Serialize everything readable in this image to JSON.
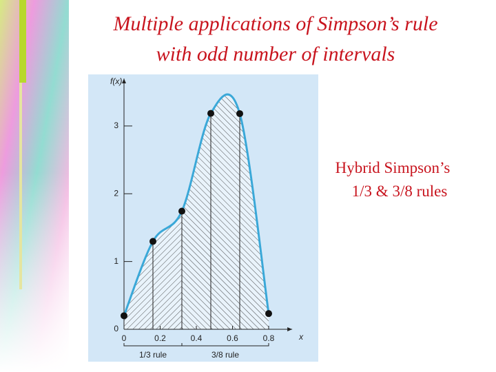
{
  "title": [
    "Multiple applications of Simpson’s rule",
    "with odd number of intervals"
  ],
  "side_text": [
    "Hybrid Simpson’s",
    "1/3 & 3/8 rules"
  ],
  "chart_data": {
    "type": "line",
    "ylabel": "f(x)",
    "xlabel": "x",
    "x": [
      0,
      0.16,
      0.32,
      0.48,
      0.64,
      0.8
    ],
    "values": [
      0.2,
      1.297,
      1.743,
      3.186,
      3.182,
      0.232
    ],
    "color": "#3aa8d8",
    "xlim": [
      0,
      0.93
    ],
    "ylim": [
      0,
      3.7
    ],
    "xticks": [
      0,
      0.2,
      0.4,
      0.6,
      0.8
    ],
    "yticks": [
      0,
      1,
      2,
      3
    ],
    "rules": [
      "1/3 rule",
      "3/8 rule"
    ]
  }
}
